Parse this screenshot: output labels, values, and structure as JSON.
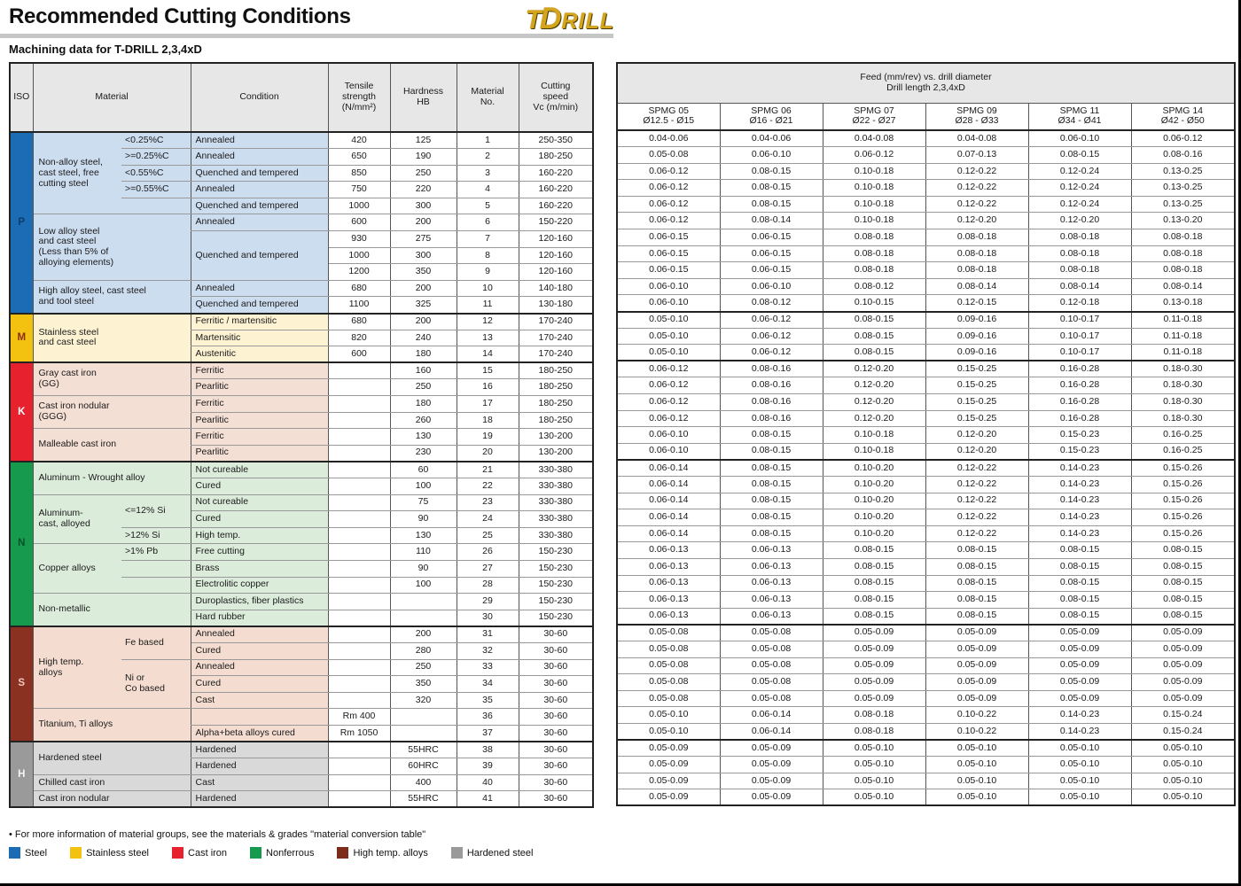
{
  "page": {
    "title": "Recommended Cutting Conditions",
    "subtitle": "Machining data for T-DRILL 2,3,4xD",
    "logo": {
      "part1": "T",
      "part2": "D",
      "part3": "RILL"
    },
    "footnote": "• For more information of material groups, see the materials & grades \"material conversion table\""
  },
  "left_table": {
    "headers": {
      "iso": "ISO",
      "material": "Material",
      "condition": "Condition",
      "tensile": "Tensile\nstrength\n(N/mm²)",
      "hardness": "Hardness\nHB",
      "material_no": "Material\nNo.",
      "cutting_speed": "Cutting\nspeed\nVc (m/min)"
    },
    "iso_groups": [
      {
        "letter": "P",
        "rows": [
          1,
          11
        ],
        "color": "#1b6cb5",
        "letter_color": "#0d3c6e"
      },
      {
        "letter": "M",
        "rows": [
          12,
          14
        ],
        "color": "#f3c211",
        "letter_color": "#8a2f17"
      },
      {
        "letter": "K",
        "rows": [
          15,
          20
        ],
        "color": "#e8212e",
        "letter_color": "#ffffff"
      },
      {
        "letter": "N",
        "rows": [
          21,
          30
        ],
        "color": "#169b4e",
        "letter_color": "#0a5129"
      },
      {
        "letter": "S",
        "rows": [
          31,
          37
        ],
        "color": "#8a3122",
        "letter_color": "#f0c9bd"
      },
      {
        "letter": "H",
        "rows": [
          38,
          41
        ],
        "color": "#9a9a9a",
        "letter_color": "#f5f5f5",
        "textured": true
      }
    ],
    "material_groups": [
      {
        "label": "Non-alloy steel,\ncast steel, free\ncutting steel",
        "rows": [
          1,
          5
        ],
        "tint": "#cdddf0",
        "subs": [
          {
            "label": "<0.25%C",
            "rows": [
              1,
              1
            ]
          },
          {
            "label": ">=0.25%C",
            "rows": [
              2,
              2
            ]
          },
          {
            "label": "<0.55%C",
            "rows": [
              3,
              3
            ]
          },
          {
            "label": ">=0.55%C",
            "rows": [
              4,
              4
            ]
          },
          {
            "label": "",
            "rows": [
              5,
              5
            ]
          }
        ]
      },
      {
        "label": "Low alloy steel\nand cast steel\n(Less than 5% of\nalloying elements)",
        "rows": [
          6,
          9
        ],
        "tint": "#cdddf0"
      },
      {
        "label": "High alloy steel, cast steel\nand tool steel",
        "rows": [
          10,
          11
        ],
        "tint": "#cdddf0"
      },
      {
        "label": "Stainless steel\nand cast steel",
        "rows": [
          12,
          14
        ],
        "tint": "#fdf2d2"
      },
      {
        "label": "Gray cast iron\n(GG)",
        "rows": [
          15,
          16
        ],
        "tint": "#f4dfd5"
      },
      {
        "label": "Cast iron nodular\n(GGG)",
        "rows": [
          17,
          18
        ],
        "tint": "#f4dfd5"
      },
      {
        "label": "Malleable cast iron",
        "rows": [
          19,
          20
        ],
        "tint": "#f4dfd5"
      },
      {
        "label": "Aluminum - Wrought alloy",
        "rows": [
          21,
          22
        ],
        "tint": "#dcecdb"
      },
      {
        "label": "Aluminum-\ncast, alloyed",
        "rows": [
          23,
          25
        ],
        "tint": "#dcecdb",
        "subs": [
          {
            "label": "<=12% Si",
            "rows": [
              23,
              24
            ]
          },
          {
            "label": ">12% Si",
            "rows": [
              25,
              25
            ]
          }
        ]
      },
      {
        "label": "Copper alloys",
        "rows": [
          26,
          28
        ],
        "tint": "#dcecdb",
        "subs": [
          {
            "label": ">1% Pb",
            "rows": [
              26,
              26
            ]
          },
          {
            "label": "",
            "rows": [
              27,
              27
            ]
          },
          {
            "label": "",
            "rows": [
              28,
              28
            ]
          }
        ]
      },
      {
        "label": "Non-metallic",
        "rows": [
          29,
          30
        ],
        "tint": "#dcecdb"
      },
      {
        "label": "High temp.\nalloys",
        "rows": [
          31,
          35
        ],
        "tint": "#f4ddd0",
        "subs": [
          {
            "label": "Fe based",
            "rows": [
              31,
              32
            ]
          },
          {
            "label": "Ni or\nCo based",
            "rows": [
              33,
              35
            ]
          }
        ]
      },
      {
        "label": "Titanium, Ti alloys",
        "rows": [
          36,
          37
        ],
        "tint": "#f4ddd0"
      },
      {
        "label": "Hardened steel",
        "rows": [
          38,
          39
        ],
        "tint": "#d9d9d9"
      },
      {
        "label": "Chilled cast iron",
        "rows": [
          40,
          40
        ],
        "tint": "#d9d9d9"
      },
      {
        "label": "Cast iron nodular",
        "rows": [
          41,
          41
        ],
        "tint": "#d9d9d9"
      }
    ],
    "conditions": [
      {
        "label": "Annealed",
        "rows": [
          1,
          1
        ]
      },
      {
        "label": "Annealed",
        "rows": [
          2,
          2
        ]
      },
      {
        "label": "Quenched and tempered",
        "rows": [
          3,
          3
        ]
      },
      {
        "label": "Annealed",
        "rows": [
          4,
          4
        ]
      },
      {
        "label": "Quenched and tempered",
        "rows": [
          5,
          5
        ]
      },
      {
        "label": "Annealed",
        "rows": [
          6,
          6
        ]
      },
      {
        "label": "Quenched and tempered",
        "rows": [
          7,
          9
        ]
      },
      {
        "label": "Annealed",
        "rows": [
          10,
          10
        ]
      },
      {
        "label": "Quenched and tempered",
        "rows": [
          11,
          11
        ]
      },
      {
        "label": "Ferritic / martensitic",
        "rows": [
          12,
          12
        ]
      },
      {
        "label": "Martensitic",
        "rows": [
          13,
          13
        ]
      },
      {
        "label": "Austenitic",
        "rows": [
          14,
          14
        ]
      },
      {
        "label": "Ferritic",
        "rows": [
          15,
          15
        ]
      },
      {
        "label": "Pearlitic",
        "rows": [
          16,
          16
        ]
      },
      {
        "label": "Ferritic",
        "rows": [
          17,
          17
        ]
      },
      {
        "label": "Pearlitic",
        "rows": [
          18,
          18
        ]
      },
      {
        "label": "Ferritic",
        "rows": [
          19,
          19
        ]
      },
      {
        "label": "Pearlitic",
        "rows": [
          20,
          20
        ]
      },
      {
        "label": "Not cureable",
        "rows": [
          21,
          21
        ]
      },
      {
        "label": "Cured",
        "rows": [
          22,
          22
        ]
      },
      {
        "label": "Not cureable",
        "rows": [
          23,
          23
        ]
      },
      {
        "label": "Cured",
        "rows": [
          24,
          24
        ]
      },
      {
        "label": "High temp.",
        "rows": [
          25,
          25
        ]
      },
      {
        "label": "Free cutting",
        "rows": [
          26,
          26
        ]
      },
      {
        "label": "Brass",
        "rows": [
          27,
          27
        ]
      },
      {
        "label": "Electrolitic copper",
        "rows": [
          28,
          28
        ]
      },
      {
        "label": "Duroplastics, fiber plastics",
        "rows": [
          29,
          29
        ]
      },
      {
        "label": "Hard rubber",
        "rows": [
          30,
          30
        ]
      },
      {
        "label": "Annealed",
        "rows": [
          31,
          31
        ]
      },
      {
        "label": "Cured",
        "rows": [
          32,
          32
        ]
      },
      {
        "label": "Annealed",
        "rows": [
          33,
          33
        ]
      },
      {
        "label": "Cured",
        "rows": [
          34,
          34
        ]
      },
      {
        "label": "Cast",
        "rows": [
          35,
          35
        ]
      },
      {
        "label": "",
        "rows": [
          36,
          36
        ]
      },
      {
        "label": "Alpha+beta alloys cured",
        "rows": [
          37,
          37
        ]
      },
      {
        "label": "Hardened",
        "rows": [
          38,
          38
        ]
      },
      {
        "label": "Hardened",
        "rows": [
          39,
          39
        ]
      },
      {
        "label": "Cast",
        "rows": [
          40,
          40
        ]
      },
      {
        "label": "Hardened",
        "rows": [
          41,
          41
        ]
      }
    ],
    "rows": [
      [
        "420",
        "125",
        "1",
        "250-350"
      ],
      [
        "650",
        "190",
        "2",
        "180-250"
      ],
      [
        "850",
        "250",
        "3",
        "160-220"
      ],
      [
        "750",
        "220",
        "4",
        "160-220"
      ],
      [
        "1000",
        "300",
        "5",
        "160-220"
      ],
      [
        "600",
        "200",
        "6",
        "150-220"
      ],
      [
        "930",
        "275",
        "7",
        "120-160"
      ],
      [
        "1000",
        "300",
        "8",
        "120-160"
      ],
      [
        "1200",
        "350",
        "9",
        "120-160"
      ],
      [
        "680",
        "200",
        "10",
        "140-180"
      ],
      [
        "1100",
        "325",
        "11",
        "130-180"
      ],
      [
        "680",
        "200",
        "12",
        "170-240"
      ],
      [
        "820",
        "240",
        "13",
        "170-240"
      ],
      [
        "600",
        "180",
        "14",
        "170-240"
      ],
      [
        "",
        "160",
        "15",
        "180-250"
      ],
      [
        "",
        "250",
        "16",
        "180-250"
      ],
      [
        "",
        "180",
        "17",
        "180-250"
      ],
      [
        "",
        "260",
        "18",
        "180-250"
      ],
      [
        "",
        "130",
        "19",
        "130-200"
      ],
      [
        "",
        "230",
        "20",
        "130-200"
      ],
      [
        "",
        "60",
        "21",
        "330-380"
      ],
      [
        "",
        "100",
        "22",
        "330-380"
      ],
      [
        "",
        "75",
        "23",
        "330-380"
      ],
      [
        "",
        "90",
        "24",
        "330-380"
      ],
      [
        "",
        "130",
        "25",
        "330-380"
      ],
      [
        "",
        "110",
        "26",
        "150-230"
      ],
      [
        "",
        "90",
        "27",
        "150-230"
      ],
      [
        "",
        "100",
        "28",
        "150-230"
      ],
      [
        "",
        "",
        "29",
        "150-230"
      ],
      [
        "",
        "",
        "30",
        "150-230"
      ],
      [
        "",
        "200",
        "31",
        "30-60"
      ],
      [
        "",
        "280",
        "32",
        "30-60"
      ],
      [
        "",
        "250",
        "33",
        "30-60"
      ],
      [
        "",
        "350",
        "34",
        "30-60"
      ],
      [
        "",
        "320",
        "35",
        "30-60"
      ],
      [
        "Rm 400",
        "",
        "36",
        "30-60"
      ],
      [
        "Rm 1050",
        "",
        "37",
        "30-60"
      ],
      [
        "",
        "55HRC",
        "38",
        "30-60"
      ],
      [
        "",
        "60HRC",
        "39",
        "30-60"
      ],
      [
        "",
        "400",
        "40",
        "30-60"
      ],
      [
        "",
        "55HRC",
        "41",
        "30-60"
      ]
    ]
  },
  "feed_table": {
    "title": "Feed (mm/rev) vs. drill diameter\nDrill length 2,3,4xD",
    "columns": [
      {
        "name": "SPMG 05",
        "range": "Ø12.5 - Ø15"
      },
      {
        "name": "SPMG 06",
        "range": "Ø16 - Ø21"
      },
      {
        "name": "SPMG 07",
        "range": "Ø22 - Ø27"
      },
      {
        "name": "SPMG 09",
        "range": "Ø28 - Ø33"
      },
      {
        "name": "SPMG 11",
        "range": "Ø34 - Ø41"
      },
      {
        "name": "SPMG 14",
        "range": "Ø42 - Ø50"
      }
    ],
    "rows": [
      [
        "0.04-0.06",
        "0.04-0.06",
        "0.04-0.08",
        "0.04-0.08",
        "0.06-0.10",
        "0.06-0.12"
      ],
      [
        "0.05-0.08",
        "0.06-0.10",
        "0.06-0.12",
        "0.07-0.13",
        "0.08-0.15",
        "0.08-0.16"
      ],
      [
        "0.06-0.12",
        "0.08-0.15",
        "0.10-0.18",
        "0.12-0.22",
        "0.12-0.24",
        "0.13-0.25"
      ],
      [
        "0.06-0.12",
        "0.08-0.15",
        "0.10-0.18",
        "0.12-0.22",
        "0.12-0.24",
        "0.13-0.25"
      ],
      [
        "0.06-0.12",
        "0.08-0.15",
        "0.10-0.18",
        "0.12-0.22",
        "0.12-0.24",
        "0.13-0.25"
      ],
      [
        "0.06-0.12",
        "0.08-0.14",
        "0.10-0.18",
        "0.12-0.20",
        "0.12-0.20",
        "0.13-0.20"
      ],
      [
        "0.06-0.15",
        "0.06-0.15",
        "0.08-0.18",
        "0.08-0.18",
        "0.08-0.18",
        "0.08-0.18"
      ],
      [
        "0.06-0.15",
        "0.06-0.15",
        "0.08-0.18",
        "0.08-0.18",
        "0.08-0.18",
        "0.08-0.18"
      ],
      [
        "0.06-0.15",
        "0.06-0.15",
        "0.08-0.18",
        "0.08-0.18",
        "0.08-0.18",
        "0.08-0.18"
      ],
      [
        "0.06-0.10",
        "0.06-0.10",
        "0.08-0.12",
        "0.08-0.14",
        "0.08-0.14",
        "0.08-0.14"
      ],
      [
        "0.06-0.10",
        "0.08-0.12",
        "0.10-0.15",
        "0.12-0.15",
        "0.12-0.18",
        "0.13-0.18"
      ],
      [
        "0.05-0.10",
        "0.06-0.12",
        "0.08-0.15",
        "0.09-0.16",
        "0.10-0.17",
        "0.11-0.18"
      ],
      [
        "0.05-0.10",
        "0.06-0.12",
        "0.08-0.15",
        "0.09-0.16",
        "0.10-0.17",
        "0.11-0.18"
      ],
      [
        "0.05-0.10",
        "0.06-0.12",
        "0.08-0.15",
        "0.09-0.16",
        "0.10-0.17",
        "0.11-0.18"
      ],
      [
        "0.06-0.12",
        "0.08-0.16",
        "0.12-0.20",
        "0.15-0.25",
        "0.16-0.28",
        "0.18-0.30"
      ],
      [
        "0.06-0.12",
        "0.08-0.16",
        "0.12-0.20",
        "0.15-0.25",
        "0.16-0.28",
        "0.18-0.30"
      ],
      [
        "0.06-0.12",
        "0.08-0.16",
        "0.12-0.20",
        "0.15-0.25",
        "0.16-0.28",
        "0.18-0.30"
      ],
      [
        "0.06-0.12",
        "0.08-0.16",
        "0.12-0.20",
        "0.15-0.25",
        "0.16-0.28",
        "0.18-0.30"
      ],
      [
        "0.06-0.10",
        "0.08-0.15",
        "0.10-0.18",
        "0.12-0.20",
        "0.15-0.23",
        "0.16-0.25"
      ],
      [
        "0.06-0.10",
        "0.08-0.15",
        "0.10-0.18",
        "0.12-0.20",
        "0.15-0.23",
        "0.16-0.25"
      ],
      [
        "0.06-0.14",
        "0.08-0.15",
        "0.10-0.20",
        "0.12-0.22",
        "0.14-0.23",
        "0.15-0.26"
      ],
      [
        "0.06-0.14",
        "0.08-0.15",
        "0.10-0.20",
        "0.12-0.22",
        "0.14-0.23",
        "0.15-0.26"
      ],
      [
        "0.06-0.14",
        "0.08-0.15",
        "0.10-0.20",
        "0.12-0.22",
        "0.14-0.23",
        "0.15-0.26"
      ],
      [
        "0.06-0.14",
        "0.08-0.15",
        "0.10-0.20",
        "0.12-0.22",
        "0.14-0.23",
        "0.15-0.26"
      ],
      [
        "0.06-0.14",
        "0.08-0.15",
        "0.10-0.20",
        "0.12-0.22",
        "0.14-0.23",
        "0.15-0.26"
      ],
      [
        "0.06-0.13",
        "0.06-0.13",
        "0.08-0.15",
        "0.08-0.15",
        "0.08-0.15",
        "0.08-0.15"
      ],
      [
        "0.06-0.13",
        "0.06-0.13",
        "0.08-0.15",
        "0.08-0.15",
        "0.08-0.15",
        "0.08-0.15"
      ],
      [
        "0.06-0.13",
        "0.06-0.13",
        "0.08-0.15",
        "0.08-0.15",
        "0.08-0.15",
        "0.08-0.15"
      ],
      [
        "0.06-0.13",
        "0.06-0.13",
        "0.08-0.15",
        "0.08-0.15",
        "0.08-0.15",
        "0.08-0.15"
      ],
      [
        "0.06-0.13",
        "0.06-0.13",
        "0.08-0.15",
        "0.08-0.15",
        "0.08-0.15",
        "0.08-0.15"
      ],
      [
        "0.05-0.08",
        "0.05-0.08",
        "0.05-0.09",
        "0.05-0.09",
        "0.05-0.09",
        "0.05-0.09"
      ],
      [
        "0.05-0.08",
        "0.05-0.08",
        "0.05-0.09",
        "0.05-0.09",
        "0.05-0.09",
        "0.05-0.09"
      ],
      [
        "0.05-0.08",
        "0.05-0.08",
        "0.05-0.09",
        "0.05-0.09",
        "0.05-0.09",
        "0.05-0.09"
      ],
      [
        "0.05-0.08",
        "0.05-0.08",
        "0.05-0.09",
        "0.05-0.09",
        "0.05-0.09",
        "0.05-0.09"
      ],
      [
        "0.05-0.08",
        "0.05-0.08",
        "0.05-0.09",
        "0.05-0.09",
        "0.05-0.09",
        "0.05-0.09"
      ],
      [
        "0.05-0.10",
        "0.06-0.14",
        "0.08-0.18",
        "0.10-0.22",
        "0.14-0.23",
        "0.15-0.24"
      ],
      [
        "0.05-0.10",
        "0.06-0.14",
        "0.08-0.18",
        "0.10-0.22",
        "0.14-0.23",
        "0.15-0.24"
      ],
      [
        "0.05-0.09",
        "0.05-0.09",
        "0.05-0.10",
        "0.05-0.10",
        "0.05-0.10",
        "0.05-0.10"
      ],
      [
        "0.05-0.09",
        "0.05-0.09",
        "0.05-0.10",
        "0.05-0.10",
        "0.05-0.10",
        "0.05-0.10"
      ],
      [
        "0.05-0.09",
        "0.05-0.09",
        "0.05-0.10",
        "0.05-0.10",
        "0.05-0.10",
        "0.05-0.10"
      ],
      [
        "0.05-0.09",
        "0.05-0.09",
        "0.05-0.10",
        "0.05-0.10",
        "0.05-0.10",
        "0.05-0.10"
      ]
    ]
  },
  "legend": [
    {
      "label": "Steel",
      "color": "#1b6cb5"
    },
    {
      "label": "Stainless steel",
      "color": "#f3c211"
    },
    {
      "label": "Cast iron",
      "color": "#e8212e"
    },
    {
      "label": "Nonferrous",
      "color": "#169b4e"
    },
    {
      "label": "High temp. alloys",
      "color": "#7d2c1b"
    },
    {
      "label": "Hardened steel",
      "color": "#9a9a9a",
      "textured": true
    }
  ]
}
